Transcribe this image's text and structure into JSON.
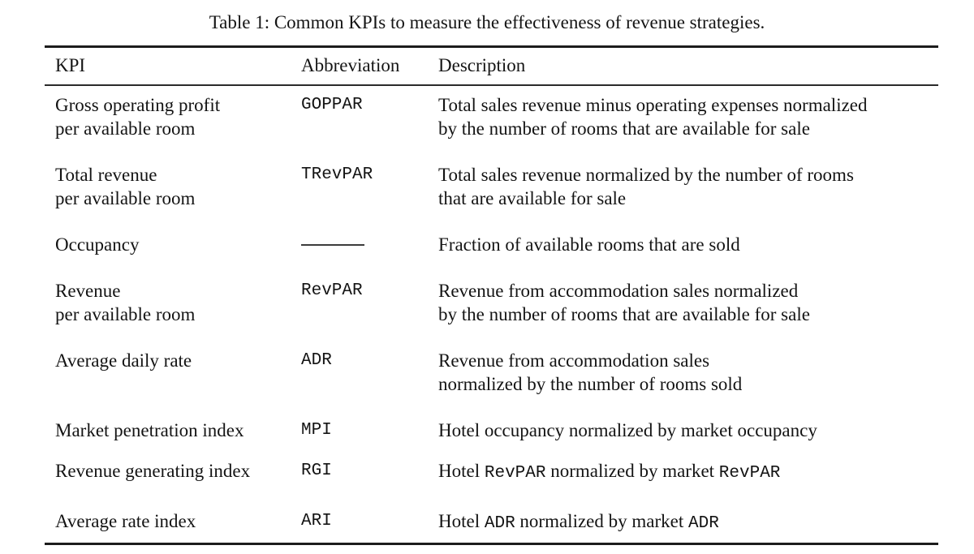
{
  "caption": "Table 1: Common KPIs to measure the effectiveness of revenue strategies.",
  "table": {
    "headers": [
      "KPI",
      "Abbreviation",
      "Description"
    ],
    "rows": [
      {
        "kpi": [
          "Gross operating profit",
          "per available room"
        ],
        "abbr": "GOPPAR",
        "desc": [
          [
            {
              "t": "Total sales revenue minus operating expenses normalized"
            }
          ],
          [
            {
              "t": "by the number of rooms that are available for sale"
            }
          ]
        ]
      },
      {
        "kpi": [
          "Total revenue",
          "per available room"
        ],
        "abbr": "TRevPAR",
        "desc": [
          [
            {
              "t": "Total sales revenue normalized by the number of rooms"
            }
          ],
          [
            {
              "t": "that are available for sale"
            }
          ]
        ]
      },
      {
        "kpi": [
          "Occupancy"
        ],
        "abbr": "———",
        "abbr_dash": true,
        "desc": [
          [
            {
              "t": "Fraction of available rooms that are sold"
            }
          ]
        ]
      },
      {
        "kpi": [
          "Revenue",
          "per available room"
        ],
        "abbr": "RevPAR",
        "desc": [
          [
            {
              "t": "Revenue from accommodation sales normalized"
            }
          ],
          [
            {
              "t": "by the number of rooms that are available for sale"
            }
          ]
        ]
      },
      {
        "kpi": [
          "Average daily rate"
        ],
        "abbr": "ADR",
        "desc": [
          [
            {
              "t": "Revenue from accommodation sales"
            }
          ],
          [
            {
              "t": "normalized by the number of rooms sold"
            }
          ]
        ]
      },
      {
        "kpi": [
          "Market penetration index"
        ],
        "abbr": "MPI",
        "desc": [
          [
            {
              "t": "Hotel occupancy normalized by market occupancy"
            }
          ]
        ]
      },
      {
        "kpi": [
          "Revenue generating index"
        ],
        "abbr": "RGI",
        "desc": [
          [
            {
              "t": "Hotel "
            },
            {
              "t": "RevPAR",
              "mono": true
            },
            {
              "t": " normalized by market "
            },
            {
              "t": "RevPAR",
              "mono": true
            }
          ]
        ]
      },
      {
        "kpi": [
          "Average rate index"
        ],
        "abbr": "ARI",
        "desc": [
          [
            {
              "t": "Hotel "
            },
            {
              "t": "ADR",
              "mono": true
            },
            {
              "t": " normalized by market "
            },
            {
              "t": "ADR",
              "mono": true
            }
          ]
        ]
      }
    ]
  }
}
